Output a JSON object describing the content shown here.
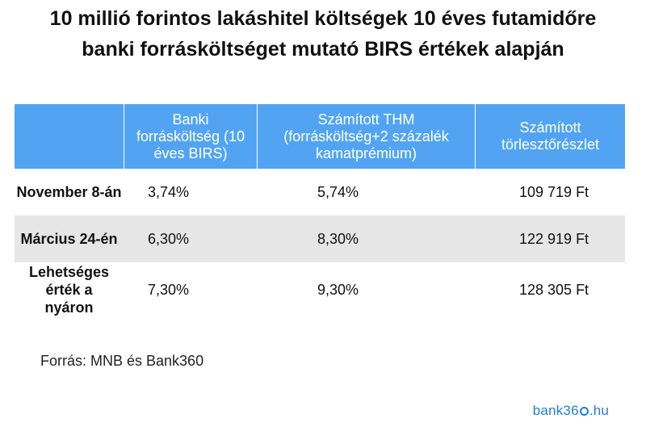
{
  "title": {
    "line1": "10 millió forintos lakáshitel költségek 10 éves futamidőre",
    "line2": "banki forrásköltséget mutató BIRS értékek alapján"
  },
  "table": {
    "headers": [
      "",
      "Banki forrásköltség (10 éves BIRS)",
      "Számított THM (forrásköltség+2 százalék kamatprémium)",
      "Számított törlesztőrészlet"
    ],
    "rows": [
      [
        "November 8-án",
        "3,74%",
        "5,74%",
        "109 719 Ft"
      ],
      [
        "Március 24-én",
        "6,30%",
        "8,30%",
        "122 919 Ft"
      ],
      [
        "Lehetséges érték a nyáron",
        "7,30%",
        "9,30%",
        "128 305 Ft"
      ]
    ]
  },
  "source": "Forrás: MNB és Bank360",
  "logo": {
    "text_before": "bank36",
    "text_after": "hu",
    "color": "#1f7fd6"
  },
  "colors": {
    "header_bg": "#52a4f3",
    "alt_row_bg": "#e6e6e6"
  }
}
